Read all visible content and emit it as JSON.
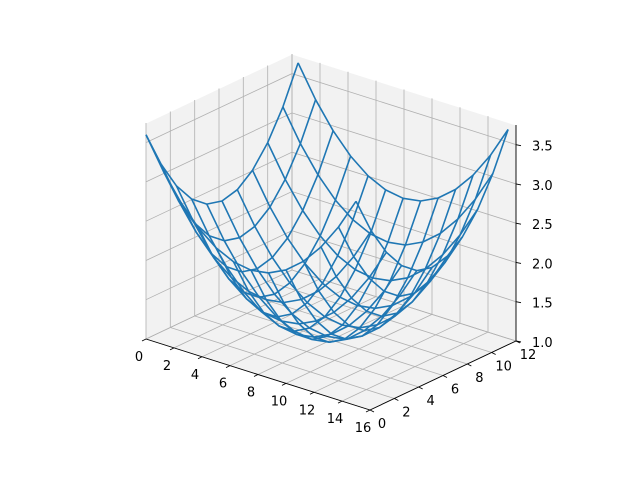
{
  "chart_data": {
    "type": "wireframe",
    "title": "",
    "xlabel": "",
    "ylabel": "",
    "zlabel": "",
    "x_grid_values": [
      0,
      1.25,
      2.5,
      3.75,
      5,
      6.25,
      7.5,
      8.75,
      10,
      11.25,
      12.5,
      13.75,
      15
    ],
    "y_grid_values": [
      0,
      1.25,
      2.5,
      3.75,
      5,
      6.25,
      7.5,
      8.75,
      10,
      11.25,
      12.5
    ],
    "z_formula": "1 + 2.6 * (((x - 7.5) / 7.5)^2 + ((y - 6.25) / 6.25)^2) / 2",
    "z_range_observed": [
      1.0,
      3.6
    ],
    "xlim": [
      0,
      16
    ],
    "ylim": [
      0,
      12
    ],
    "zlim": [
      1.0,
      3.75
    ],
    "x_ticks": [
      "0",
      "2",
      "4",
      "6",
      "8",
      "10",
      "12",
      "14",
      "16"
    ],
    "y_ticks": [
      "0",
      "2",
      "4",
      "6",
      "8",
      "10",
      "12"
    ],
    "z_ticks": [
      "1.0",
      "1.5",
      "2.0",
      "2.5",
      "3.0",
      "3.5"
    ],
    "grid": true,
    "colors": {
      "wire": "#1f77b4",
      "pane": "#f2f2f2",
      "pane_edge": "#ffffff",
      "grid": "#b0b0b0",
      "axis": "#000000"
    }
  }
}
